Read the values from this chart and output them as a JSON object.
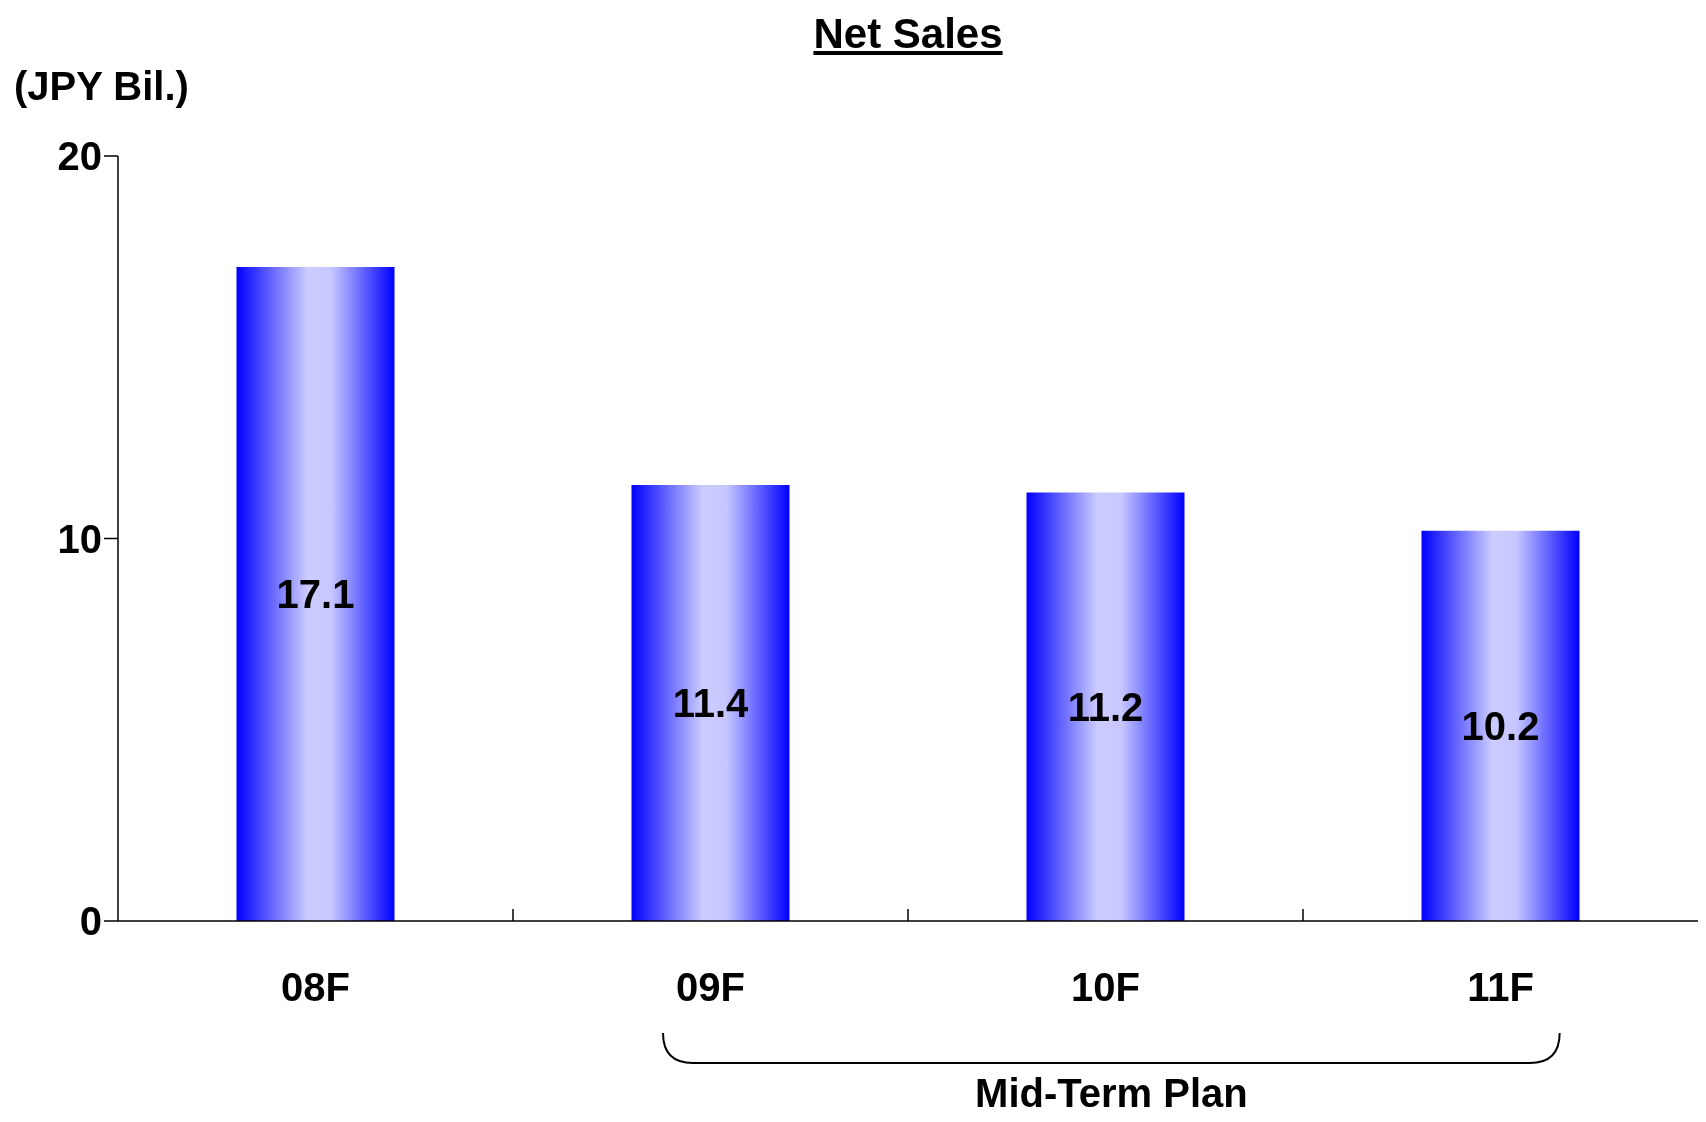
{
  "chart_data": {
    "type": "bar",
    "title": "Net Sales",
    "ylabel": "(JPY Bil.)",
    "categories": [
      "08F",
      "09F",
      "10F",
      "11F"
    ],
    "values": [
      17.1,
      11.4,
      11.2,
      10.2
    ],
    "color": "#0000ff",
    "ylim": [
      0,
      20
    ],
    "yticks": [
      0,
      10,
      20
    ],
    "data_labels": true,
    "annotations": [
      "Mid-Term Plan"
    ]
  }
}
